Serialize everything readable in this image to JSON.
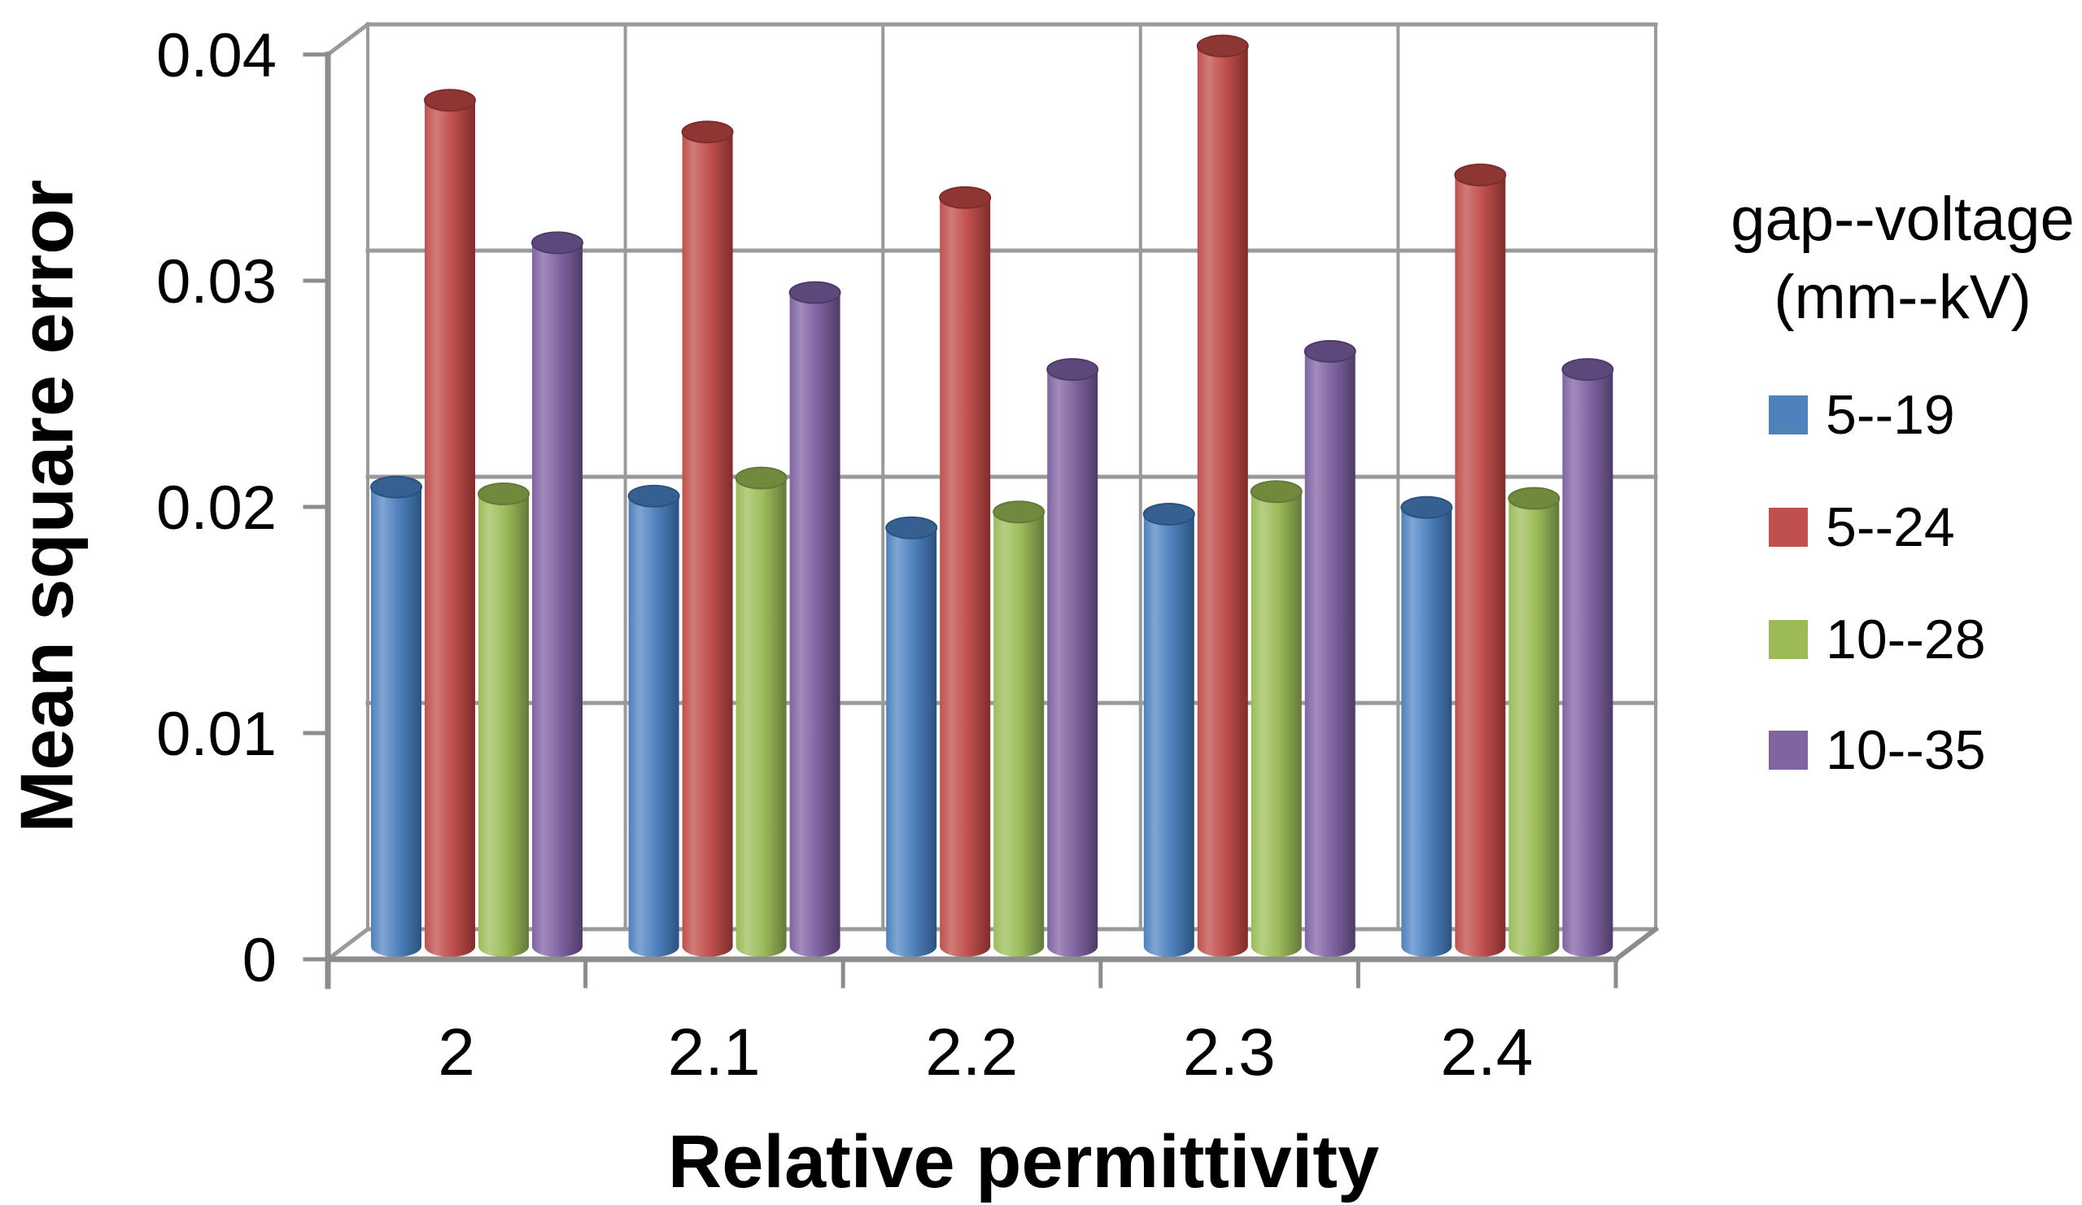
{
  "chart_data": {
    "type": "bar",
    "style": "3d-cylinder",
    "title": "",
    "xlabel": "Relative permittivity",
    "ylabel": "Mean square error",
    "categories": [
      "2",
      "2.1",
      "2.2",
      "2.3",
      "2.4"
    ],
    "series": [
      {
        "name": "5--19",
        "color": "#4F81BD",
        "color_light": "#7FA5D4",
        "color_dark": "#2A527F",
        "color_top": "#36608F",
        "values": [
          0.0203,
          0.0199,
          0.0185,
          0.0191,
          0.0194
        ]
      },
      {
        "name": "5--24",
        "color": "#C0504D",
        "color_light": "#D07C79",
        "color_dark": "#7E2D2B",
        "color_top": "#8E3634",
        "values": [
          0.0374,
          0.036,
          0.0331,
          0.0398,
          0.0341
        ]
      },
      {
        "name": "10--28",
        "color": "#9BBB59",
        "color_light": "#B7CF85",
        "color_dark": "#63793A",
        "color_top": "#71893D",
        "values": [
          0.02,
          0.0207,
          0.0192,
          0.0201,
          0.0198
        ]
      },
      {
        "name": "10--35",
        "color": "#8064A2",
        "color_light": "#A18CBC",
        "color_dark": "#4E3B68",
        "color_top": "#5C487A",
        "values": [
          0.0311,
          0.0289,
          0.0255,
          0.0263,
          0.0255
        ]
      }
    ],
    "ylim": [
      0,
      0.04
    ],
    "yticks": [
      0,
      0.01,
      0.02,
      0.03,
      0.04
    ],
    "ytick_labels": [
      "0",
      "0.01",
      "0.02",
      "0.03",
      "0.04"
    ],
    "grid": true,
    "legend_position": "right"
  },
  "legend": {
    "title_line1": "gap--voltage",
    "title_line2": "(mm--kV)"
  },
  "colors": {
    "gridline": "#9A9A9A",
    "axis": "#8C8C8C",
    "background": "#FFFFFF",
    "text": "#000000"
  }
}
